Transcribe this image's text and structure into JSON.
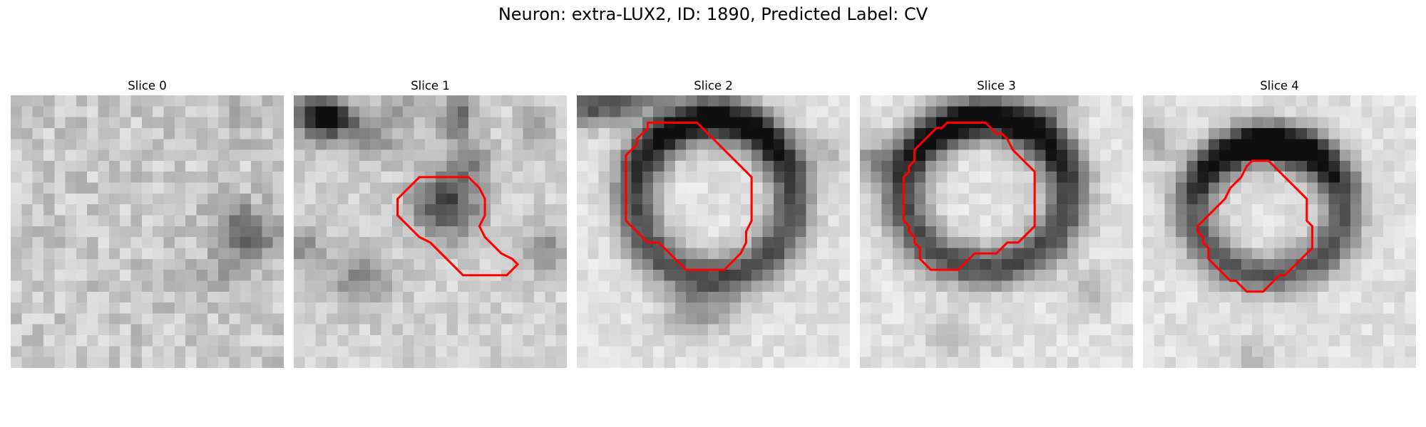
{
  "figure": {
    "title": "Neuron: extra-LUX2, ID: 1890, Predicted Label: CV"
  },
  "colors": {
    "contour": "#ff0000",
    "background": "#ffffff"
  },
  "panels": [
    {
      "label": "Slice 0",
      "contour": []
    },
    {
      "label": "Slice 1",
      "contour": [
        [
          13.5,
          7.5
        ],
        [
          16,
          7.5
        ],
        [
          17,
          8.5
        ],
        [
          17.5,
          9.5
        ],
        [
          17.5,
          11
        ],
        [
          17,
          12
        ],
        [
          17.5,
          13
        ],
        [
          18,
          13.5
        ],
        [
          19,
          14.5
        ],
        [
          20,
          15
        ],
        [
          20.5,
          15.5
        ],
        [
          19.5,
          16.5
        ],
        [
          18.5,
          16.5
        ],
        [
          17.5,
          16.5
        ],
        [
          16.5,
          16.5
        ],
        [
          16,
          16.5
        ],
        [
          15.5,
          16.5
        ],
        [
          14.5,
          15.5
        ],
        [
          13.5,
          14.5
        ],
        [
          13,
          14
        ],
        [
          12.5,
          13.5
        ],
        [
          11.5,
          13
        ],
        [
          10.5,
          12
        ],
        [
          10,
          11.5
        ],
        [
          9.5,
          11
        ],
        [
          9.5,
          10
        ],
        [
          9.5,
          9.5
        ],
        [
          10.5,
          8.5
        ],
        [
          11.5,
          7.5
        ],
        [
          12.5,
          7.5
        ]
      ]
    },
    {
      "label": "Slice 2",
      "contour": [
        [
          6.5,
          2.5
        ],
        [
          11,
          2.5
        ],
        [
          12,
          3.5
        ],
        [
          13,
          4.5
        ],
        [
          14,
          5.5
        ],
        [
          15,
          6.5
        ],
        [
          16,
          7.5
        ],
        [
          16,
          8.5
        ],
        [
          16,
          9.5
        ],
        [
          16,
          10.5
        ],
        [
          16,
          11.5
        ],
        [
          15.5,
          12.5
        ],
        [
          15.5,
          13.5
        ],
        [
          15,
          14.5
        ],
        [
          14.5,
          15
        ],
        [
          13.5,
          16
        ],
        [
          12,
          16
        ],
        [
          11,
          16
        ],
        [
          10,
          16
        ],
        [
          9.5,
          15.5
        ],
        [
          9,
          15
        ],
        [
          8.5,
          14.5
        ],
        [
          8,
          14
        ],
        [
          7.5,
          13.5
        ],
        [
          6.5,
          13.5
        ],
        [
          6,
          13
        ],
        [
          5.5,
          12.5
        ],
        [
          5,
          12
        ],
        [
          4.5,
          11.5
        ],
        [
          4.5,
          10.5
        ],
        [
          4.5,
          9.5
        ],
        [
          4.5,
          8.5
        ],
        [
          4.5,
          7.5
        ],
        [
          4.5,
          6.5
        ],
        [
          4.5,
          5.5
        ],
        [
          5,
          5
        ],
        [
          5.5,
          4.5
        ],
        [
          5.5,
          4
        ],
        [
          6,
          3.5
        ],
        [
          6.5,
          3
        ]
      ]
    },
    {
      "label": "Slice 3",
      "contour": [
        [
          8,
          2.5
        ],
        [
          11.5,
          2.5
        ],
        [
          12,
          3
        ],
        [
          12.5,
          3.5
        ],
        [
          13,
          3.5
        ],
        [
          13.5,
          4
        ],
        [
          14,
          5
        ],
        [
          14.5,
          5.5
        ],
        [
          15,
          6
        ],
        [
          15.5,
          6.5
        ],
        [
          16,
          7
        ],
        [
          16,
          8
        ],
        [
          16,
          9
        ],
        [
          16,
          10
        ],
        [
          16,
          11
        ],
        [
          16,
          12
        ],
        [
          15.5,
          12.5
        ],
        [
          15,
          13
        ],
        [
          14.5,
          13.5
        ],
        [
          13.5,
          13.5
        ],
        [
          13,
          14
        ],
        [
          12.5,
          14.5
        ],
        [
          11.5,
          14.5
        ],
        [
          10.5,
          14.5
        ],
        [
          10,
          15
        ],
        [
          9.5,
          15.5
        ],
        [
          9,
          16
        ],
        [
          8,
          16
        ],
        [
          7,
          16
        ],
        [
          6.5,
          16
        ],
        [
          6,
          15.5
        ],
        [
          5.5,
          15
        ],
        [
          5.5,
          14
        ],
        [
          5,
          13.5
        ],
        [
          5,
          13
        ],
        [
          4.5,
          12.5
        ],
        [
          4.5,
          12
        ],
        [
          4,
          11.5
        ],
        [
          4,
          10
        ],
        [
          4,
          9
        ],
        [
          4,
          8
        ],
        [
          4,
          7.5
        ],
        [
          4.5,
          7
        ],
        [
          4.5,
          6.5
        ],
        [
          5,
          6
        ],
        [
          5,
          5
        ],
        [
          5.5,
          4.5
        ],
        [
          6,
          4
        ],
        [
          6.5,
          3.5
        ],
        [
          7,
          3
        ],
        [
          7.5,
          3
        ]
      ]
    },
    {
      "label": "Slice 4",
      "contour": [
        [
          9.5,
          6.5
        ],
        [
          10,
          6
        ],
        [
          11.5,
          6
        ],
        [
          12,
          6.5
        ],
        [
          12.5,
          7
        ],
        [
          13,
          7.5
        ],
        [
          13.5,
          8
        ],
        [
          14,
          8.5
        ],
        [
          15,
          9.5
        ],
        [
          15,
          10.5
        ],
        [
          15,
          11.5
        ],
        [
          15.5,
          12
        ],
        [
          15.5,
          13
        ],
        [
          15.5,
          14
        ],
        [
          15,
          14.5
        ],
        [
          14.5,
          15
        ],
        [
          14,
          15.5
        ],
        [
          13.5,
          16
        ],
        [
          13,
          16.5
        ],
        [
          12.5,
          16.5
        ],
        [
          12,
          17
        ],
        [
          11.5,
          17.5
        ],
        [
          11,
          18
        ],
        [
          10,
          18
        ],
        [
          9.5,
          18
        ],
        [
          9,
          17.5
        ],
        [
          8.5,
          17
        ],
        [
          8,
          17
        ],
        [
          7.5,
          16.5
        ],
        [
          7,
          16
        ],
        [
          6.5,
          15.5
        ],
        [
          6,
          15
        ],
        [
          6,
          14
        ],
        [
          5.5,
          13.5
        ],
        [
          5.5,
          13
        ],
        [
          5,
          12.5
        ],
        [
          5,
          12
        ],
        [
          5.5,
          11.5
        ],
        [
          6,
          11
        ],
        [
          6.5,
          10.5
        ],
        [
          7,
          10
        ],
        [
          7.5,
          9.5
        ],
        [
          8,
          8.5
        ],
        [
          8.5,
          8
        ],
        [
          9,
          7.5
        ]
      ]
    }
  ]
}
